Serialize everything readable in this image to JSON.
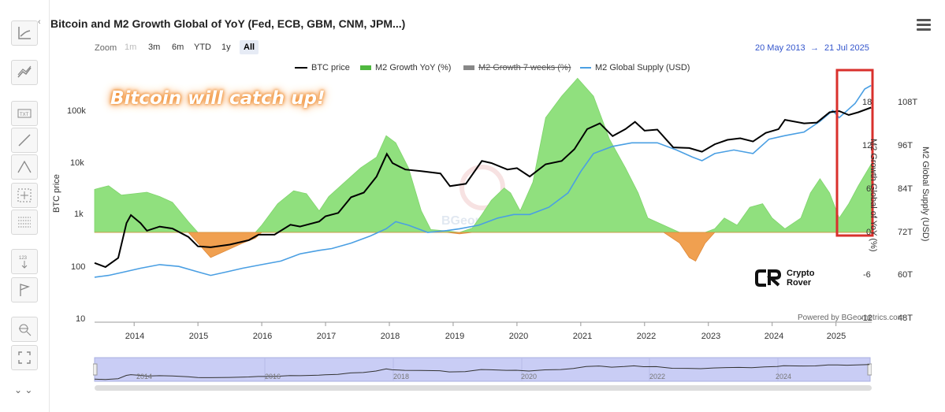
{
  "header": {
    "title": "Bitcoin and M2 Growth Global of YoY (Fed, ECB, GBM, CNM, JPM...)",
    "range_start": "20 May 2013",
    "range_arrow": "→",
    "range_end": "21 Jul 2025"
  },
  "zoom": {
    "label": "Zoom",
    "buttons": [
      "1m",
      "3m",
      "6m",
      "YTD",
      "1y",
      "All"
    ],
    "active": "All",
    "disabled": "1m"
  },
  "legend": {
    "btc": "BTC price",
    "m2_yoy": "M2 Growth YoY (%)",
    "m2_7w": "M2 Growth 7 weeks (%)",
    "m2_supply": "M2 Global Supply (USD)"
  },
  "overlay_text": "Bitcoin will catch up!",
  "branding": {
    "rover_line1": "Crypto",
    "rover_line2": "Rover",
    "powered": "Powered by BGeometrics.com",
    "watermark": "BGeometrics"
  },
  "colors": {
    "btc": "#000000",
    "m2_supply": "#4a9fe3",
    "m2_pos": "#90e07e",
    "m2_neg": "#f0a050",
    "highlight": "#d9302c",
    "navigator_bg": "#c9cdf5"
  },
  "chart_data": {
    "type": "line",
    "title": "Bitcoin and M2 Growth Global of YoY (Fed, ECB, GBM, CNM, JPM...)",
    "x_ticks": [
      "2014",
      "2015",
      "2016",
      "2017",
      "2018",
      "2019",
      "2020",
      "2021",
      "2022",
      "2023",
      "2024",
      "2025"
    ],
    "left_axis": {
      "label": "BTC price",
      "scale": "log",
      "ticks": [
        "10",
        "100",
        "1k",
        "10k",
        "100k"
      ],
      "range": [
        10,
        300000
      ]
    },
    "right_axis_1": {
      "label": "M2 Growth Global of YoY (%)",
      "ticks": [
        "-12",
        "-6",
        "0",
        "6",
        "12",
        "18"
      ],
      "range": [
        -12,
        22
      ]
    },
    "right_axis_2": {
      "label": "M2 Global Supply (USD)",
      "ticks": [
        "48T",
        "60T",
        "72T",
        "84T",
        "96T",
        "108T"
      ],
      "range": [
        48,
        116
      ]
    },
    "navigator_ticks": [
      "2014",
      "2016",
      "2018",
      "2020",
      "2022",
      "2024"
    ],
    "series": [
      {
        "name": "BTC price",
        "axis": "left",
        "points": [
          [
            2013.38,
            120
          ],
          [
            2013.55,
            100
          ],
          [
            2013.75,
            150
          ],
          [
            2013.88,
            700
          ],
          [
            2013.95,
            1000
          ],
          [
            2014.1,
            700
          ],
          [
            2014.2,
            500
          ],
          [
            2014.4,
            600
          ],
          [
            2014.6,
            550
          ],
          [
            2014.85,
            380
          ],
          [
            2015.0,
            250
          ],
          [
            2015.2,
            240
          ],
          [
            2015.5,
            270
          ],
          [
            2015.8,
            330
          ],
          [
            2015.95,
            420
          ],
          [
            2016.2,
            420
          ],
          [
            2016.45,
            650
          ],
          [
            2016.6,
            600
          ],
          [
            2016.9,
            750
          ],
          [
            2017.0,
            950
          ],
          [
            2017.2,
            1100
          ],
          [
            2017.4,
            2200
          ],
          [
            2017.6,
            2700
          ],
          [
            2017.8,
            5500
          ],
          [
            2017.96,
            15000
          ],
          [
            2018.05,
            10000
          ],
          [
            2018.25,
            7500
          ],
          [
            2018.5,
            7000
          ],
          [
            2018.8,
            6300
          ],
          [
            2018.95,
            3600
          ],
          [
            2019.2,
            4000
          ],
          [
            2019.45,
            11000
          ],
          [
            2019.6,
            10000
          ],
          [
            2019.85,
            7500
          ],
          [
            2020.0,
            8000
          ],
          [
            2020.2,
            5500
          ],
          [
            2020.45,
            9500
          ],
          [
            2020.7,
            11000
          ],
          [
            2020.9,
            18500
          ],
          [
            2021.1,
            45000
          ],
          [
            2021.3,
            58000
          ],
          [
            2021.5,
            33000
          ],
          [
            2021.7,
            45000
          ],
          [
            2021.85,
            62000
          ],
          [
            2022.0,
            42000
          ],
          [
            2022.2,
            44000
          ],
          [
            2022.45,
            20000
          ],
          [
            2022.7,
            19500
          ],
          [
            2022.9,
            16500
          ],
          [
            2023.1,
            23000
          ],
          [
            2023.3,
            28000
          ],
          [
            2023.5,
            30000
          ],
          [
            2023.7,
            26000
          ],
          [
            2023.9,
            38000
          ],
          [
            2024.1,
            45000
          ],
          [
            2024.2,
            68000
          ],
          [
            2024.5,
            58000
          ],
          [
            2024.7,
            60000
          ],
          [
            2024.9,
            95000
          ],
          [
            2025.05,
            100000
          ],
          [
            2025.2,
            84000
          ],
          [
            2025.35,
            95000
          ],
          [
            2025.55,
            117000
          ]
        ]
      },
      {
        "name": "M2 Growth YoY (%)",
        "axis": "right1",
        "points": [
          [
            2013.38,
            6
          ],
          [
            2013.6,
            6.5
          ],
          [
            2013.8,
            5.2
          ],
          [
            2014.0,
            5.4
          ],
          [
            2014.2,
            5.6
          ],
          [
            2014.4,
            5.0
          ],
          [
            2014.6,
            4.2
          ],
          [
            2014.85,
            1.5
          ],
          [
            2015.0,
            -1.5
          ],
          [
            2015.2,
            -3.5
          ],
          [
            2015.45,
            -2.5
          ],
          [
            2015.7,
            -1.5
          ],
          [
            2015.9,
            -0.8
          ],
          [
            2016.0,
            1.0
          ],
          [
            2016.25,
            4.0
          ],
          [
            2016.5,
            5.8
          ],
          [
            2016.7,
            5.4
          ],
          [
            2016.9,
            3.0
          ],
          [
            2017.05,
            5.0
          ],
          [
            2017.3,
            7.0
          ],
          [
            2017.55,
            9.0
          ],
          [
            2017.8,
            10.5
          ],
          [
            2017.95,
            13.5
          ],
          [
            2018.1,
            12.5
          ],
          [
            2018.3,
            9.0
          ],
          [
            2018.5,
            3.0
          ],
          [
            2018.65,
            0.4
          ],
          [
            2018.9,
            0.2
          ],
          [
            2019.1,
            -0.2
          ],
          [
            2019.3,
            0.6
          ],
          [
            2019.45,
            2.5
          ],
          [
            2019.6,
            4.5
          ],
          [
            2019.8,
            6.2
          ],
          [
            2019.9,
            5.5
          ],
          [
            2020.05,
            3.0
          ],
          [
            2020.25,
            7.0
          ],
          [
            2020.45,
            16.0
          ],
          [
            2020.7,
            19.0
          ],
          [
            2020.95,
            21.5
          ],
          [
            2021.2,
            19.0
          ],
          [
            2021.45,
            13.0
          ],
          [
            2021.7,
            9.0
          ],
          [
            2021.9,
            5.5
          ],
          [
            2022.05,
            2.0
          ],
          [
            2022.3,
            1.0
          ],
          [
            2022.55,
            -1.5
          ],
          [
            2022.7,
            -3.5
          ],
          [
            2022.8,
            -4.0
          ],
          [
            2022.95,
            -1.5
          ],
          [
            2023.1,
            0.5
          ],
          [
            2023.25,
            2.0
          ],
          [
            2023.45,
            1.0
          ],
          [
            2023.65,
            3.5
          ],
          [
            2023.85,
            4.0
          ],
          [
            2024.0,
            2.0
          ],
          [
            2024.2,
            0.5
          ],
          [
            2024.45,
            2.0
          ],
          [
            2024.6,
            5.5
          ],
          [
            2024.75,
            7.5
          ],
          [
            2024.9,
            5.5
          ],
          [
            2025.05,
            2.0
          ],
          [
            2025.2,
            4.0
          ],
          [
            2025.35,
            6.5
          ],
          [
            2025.55,
            9.5
          ]
        ]
      },
      {
        "name": "M2 Global Supply (USD)",
        "axis": "right2",
        "points": [
          [
            2013.38,
            59.5
          ],
          [
            2013.6,
            60
          ],
          [
            2013.85,
            61
          ],
          [
            2014.1,
            62
          ],
          [
            2014.4,
            63
          ],
          [
            2014.7,
            62.5
          ],
          [
            2015.0,
            61
          ],
          [
            2015.2,
            60
          ],
          [
            2015.45,
            61
          ],
          [
            2015.7,
            62
          ],
          [
            2016.0,
            63
          ],
          [
            2016.3,
            64
          ],
          [
            2016.6,
            66
          ],
          [
            2016.9,
            67
          ],
          [
            2017.1,
            67.5
          ],
          [
            2017.4,
            69
          ],
          [
            2017.7,
            71
          ],
          [
            2017.95,
            73
          ],
          [
            2018.1,
            75
          ],
          [
            2018.3,
            74
          ],
          [
            2018.6,
            72
          ],
          [
            2018.9,
            72.5
          ],
          [
            2019.1,
            73
          ],
          [
            2019.4,
            74
          ],
          [
            2019.7,
            76
          ],
          [
            2019.95,
            77
          ],
          [
            2020.2,
            77
          ],
          [
            2020.5,
            79
          ],
          [
            2020.8,
            83
          ],
          [
            2021.0,
            89
          ],
          [
            2021.2,
            94
          ],
          [
            2021.5,
            96
          ],
          [
            2021.8,
            97
          ],
          [
            2022.0,
            97
          ],
          [
            2022.2,
            97
          ],
          [
            2022.5,
            95
          ],
          [
            2022.75,
            93
          ],
          [
            2022.9,
            92
          ],
          [
            2023.1,
            94
          ],
          [
            2023.4,
            95
          ],
          [
            2023.7,
            94
          ],
          [
            2023.95,
            98
          ],
          [
            2024.2,
            99
          ],
          [
            2024.5,
            100
          ],
          [
            2024.75,
            103
          ],
          [
            2024.95,
            106
          ],
          [
            2025.05,
            104
          ],
          [
            2025.3,
            108
          ],
          [
            2025.45,
            112
          ],
          [
            2025.55,
            113
          ]
        ]
      }
    ]
  }
}
